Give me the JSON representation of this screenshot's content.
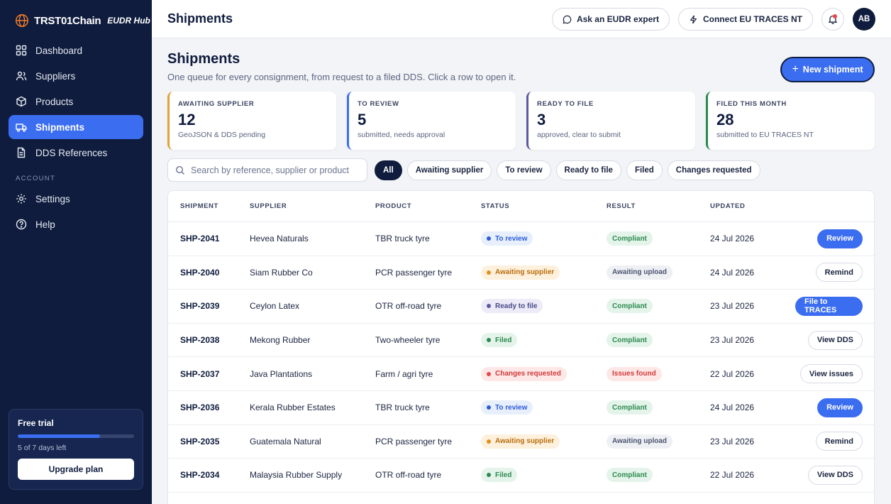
{
  "brand": {
    "name": "TRST01Chain",
    "sub": "EUDR Hub"
  },
  "sidebar": {
    "items": [
      {
        "label": "Dashboard",
        "icon": "grid-icon",
        "active": false
      },
      {
        "label": "Suppliers",
        "icon": "users-icon",
        "active": false
      },
      {
        "label": "Products",
        "icon": "box-icon",
        "active": false
      },
      {
        "label": "Shipments",
        "icon": "truck-icon",
        "active": true
      },
      {
        "label": "DDS References",
        "icon": "document-icon",
        "active": false
      }
    ],
    "section_label": "ACCOUNT",
    "account_items": [
      {
        "label": "Settings",
        "icon": "gear-icon"
      },
      {
        "label": "Help",
        "icon": "help-icon"
      }
    ],
    "trial": {
      "title": "Free trial",
      "progress_fraction": 0.71,
      "sub": "5 of 7 days left",
      "button": "Upgrade plan"
    }
  },
  "topbar": {
    "title": "Shipments",
    "ask_expert": "Ask an EUDR expert",
    "connect": "Connect EU TRACES NT",
    "avatar": "AB"
  },
  "main": {
    "title": "Shipments",
    "subtitle": "One queue for every consignment, from request to a filed DDS. Click a row to open it.",
    "new_button": "New shipment",
    "kpis": [
      {
        "label": "AWAITING SUPPLIER",
        "value": "12",
        "sub": "GeoJSON & DDS pending",
        "color": "#e0a23a"
      },
      {
        "label": "TO REVIEW",
        "value": "5",
        "sub": "submitted, needs approval",
        "color": "#3b6df0"
      },
      {
        "label": "READY TO FILE",
        "value": "3",
        "sub": "approved, clear to submit",
        "color": "#5a5aa0"
      },
      {
        "label": "FILED THIS MONTH",
        "value": "28",
        "sub": "submitted to EU TRACES NT",
        "color": "#2c8a4f"
      }
    ],
    "search_placeholder": "Search by reference, supplier or product",
    "filters": [
      "All",
      "Awaiting supplier",
      "To review",
      "Ready to file",
      "Filed",
      "Changes requested"
    ],
    "table": {
      "headers": [
        "SHIPMENT",
        "SUPPLIER",
        "PRODUCT",
        "STATUS",
        "RESULT",
        "UPDATED"
      ],
      "rows": [
        {
          "id": "SHP-2041",
          "supplier": "Hevea Naturals",
          "product": "TBR truck tyre",
          "status": "To review",
          "status_kind": "review",
          "result": "Compliant",
          "result_kind": "comp",
          "updated": "24 Jul 2026",
          "action": "Review",
          "action_kind": "primary"
        },
        {
          "id": "SHP-2040",
          "supplier": "Siam Rubber Co",
          "product": "PCR passenger tyre",
          "status": "Awaiting supplier",
          "status_kind": "await",
          "result": "Awaiting upload",
          "result_kind": "await",
          "updated": "24 Jul 2026",
          "action": "Remind",
          "action_kind": "secondary"
        },
        {
          "id": "SHP-2039",
          "supplier": "Ceylon Latex",
          "product": "OTR off-road tyre",
          "status": "Ready to file",
          "status_kind": "ready",
          "result": "Compliant",
          "result_kind": "comp",
          "updated": "23 Jul 2026",
          "action": "File to TRACES",
          "action_kind": "primary"
        },
        {
          "id": "SHP-2038",
          "supplier": "Mekong Rubber",
          "product": "Two-wheeler tyre",
          "status": "Filed",
          "status_kind": "filed",
          "result": "Compliant",
          "result_kind": "comp",
          "updated": "23 Jul 2026",
          "action": "View DDS",
          "action_kind": "secondary"
        },
        {
          "id": "SHP-2037",
          "supplier": "Java Plantations",
          "product": "Farm / agri tyre",
          "status": "Changes requested",
          "status_kind": "changes",
          "result": "Issues found",
          "result_kind": "issue",
          "updated": "22 Jul 2026",
          "action": "View issues",
          "action_kind": "secondary"
        },
        {
          "id": "SHP-2036",
          "supplier": "Kerala Rubber Estates",
          "product": "TBR truck tyre",
          "status": "To review",
          "status_kind": "review",
          "result": "Compliant",
          "result_kind": "comp",
          "updated": "24 Jul 2026",
          "action": "Review",
          "action_kind": "primary"
        },
        {
          "id": "SHP-2035",
          "supplier": "Guatemala Natural",
          "product": "PCR passenger tyre",
          "status": "Awaiting supplier",
          "status_kind": "await",
          "result": "Awaiting upload",
          "result_kind": "await",
          "updated": "23 Jul 2026",
          "action": "Remind",
          "action_kind": "secondary"
        },
        {
          "id": "SHP-2034",
          "supplier": "Malaysia Rubber Supply",
          "product": "OTR off-road tyre",
          "status": "Filed",
          "status_kind": "filed",
          "result": "Compliant",
          "result_kind": "comp",
          "updated": "22 Jul 2026",
          "action": "View DDS",
          "action_kind": "secondary"
        }
      ]
    }
  }
}
